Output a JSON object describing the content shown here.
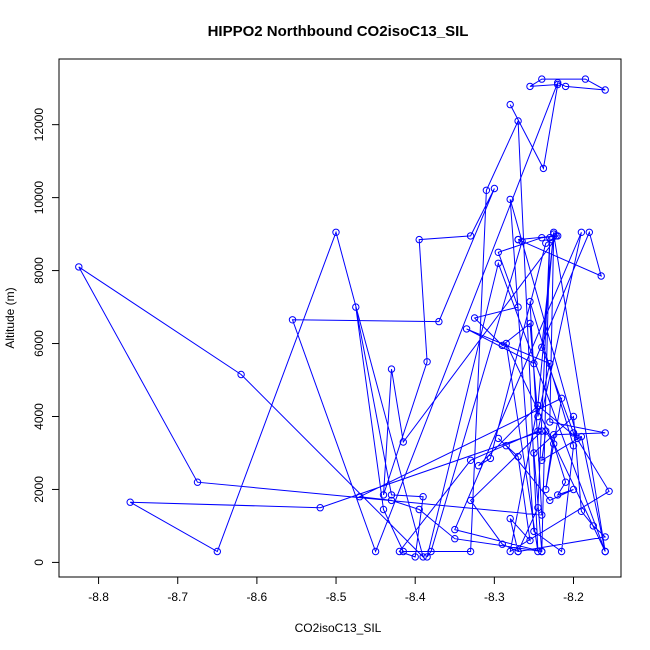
{
  "chart_data": {
    "type": "line",
    "title": "HIPPO2 Northbound CO2isoC13_SIL",
    "xlabel": "CO2isoC13_SIL",
    "ylabel": "Altitude (m)",
    "xlim": [
      -8.85,
      -8.14
    ],
    "ylim": [
      -400,
      13800
    ],
    "xticks": [
      -8.8,
      -8.7,
      -8.6,
      -8.5,
      -8.4,
      -8.3,
      -8.2
    ],
    "xtick_labels": [
      "-8.8",
      "-8.7",
      "-8.6",
      "-8.5",
      "-8.4",
      "-8.3",
      "-8.2"
    ],
    "yticks": [
      0,
      2000,
      4000,
      6000,
      8000,
      10000,
      12000
    ],
    "ytick_labels": [
      "0",
      "2000",
      "4000",
      "6000",
      "8000",
      "10000",
      "12000"
    ],
    "grid": false,
    "legend": "none",
    "colors": {
      "series": "#0000ff",
      "axes": "#000000",
      "background": "#ffffff"
    },
    "series": [
      {
        "style": "line+points",
        "x": [
          -8.28,
          -8.238,
          -8.22,
          -8.255,
          -8.24,
          -8.185,
          -8.16,
          -8.21,
          -8.22,
          -8.45,
          -8.555,
          -8.37,
          -8.3,
          -8.33,
          -8.395,
          -8.385,
          -8.44,
          -8.43,
          -8.415,
          -8.22,
          -8.24,
          -8.295,
          -8.27,
          -8.325,
          -8.29,
          -8.255,
          -8.245,
          -8.23,
          -8.335,
          -8.25,
          -8.18,
          -8.165,
          -8.27,
          -8.265,
          -8.38,
          -8.385,
          -8.295,
          -8.16,
          -8.225,
          -8.23,
          -8.16,
          -8.225,
          -8.235,
          -8.215,
          -8.47,
          -8.43,
          -8.395,
          -8.35,
          -8.24,
          -8.25,
          -8.2,
          -8.19,
          -8.175,
          -8.16,
          -8.27,
          -8.28,
          -8.255,
          -8.27,
          -8.295,
          -8.285,
          -8.23,
          -8.2,
          -8.22,
          -8.21,
          -8.225,
          -8.235,
          -8.24,
          -8.19,
          -8.16,
          -8.285,
          -8.245,
          -8.27,
          -8.31,
          -8.33,
          -8.415,
          -8.44,
          -8.475,
          -8.43,
          -8.39,
          -8.4,
          -8.42,
          -8.33,
          -8.245,
          -8.19,
          -8.35,
          -8.24,
          -8.23,
          -8.245,
          -8.27,
          -8.29,
          -8.33,
          -8.24,
          -8.52,
          -8.76,
          -8.65,
          -8.5,
          -8.39,
          -8.62,
          -8.825,
          -8.675,
          -8.24,
          -8.255,
          -8.2,
          -8.215,
          -8.25,
          -8.28,
          -8.195,
          -8.245,
          -8.225,
          -8.24,
          -8.2,
          -8.155,
          -8.28,
          -8.245,
          -8.32,
          -8.305,
          -8.235,
          -8.228,
          -8.222,
          -8.27
        ],
        "y": [
          12550,
          10800,
          13100,
          13050,
          13250,
          13250,
          12950,
          13050,
          13150,
          300,
          6650,
          6600,
          10250,
          8950,
          8850,
          5500,
          1850,
          5300,
          3300,
          8950,
          8900,
          8500,
          7000,
          6700,
          5950,
          6550,
          4000,
          5450,
          6400,
          5450,
          9050,
          7850,
          8850,
          8800,
          300,
          150,
          8200,
          300,
          9000,
          3850,
          3550,
          3500,
          2000,
          4500,
          1800,
          1700,
          1450,
          650,
          300,
          3000,
          4000,
          1400,
          1000,
          700,
          300,
          1200,
          600,
          2900,
          3400,
          3200,
          1700,
          2000,
          1850,
          2200,
          3250,
          3600,
          2800,
          3450,
          300,
          6000,
          300,
          12100,
          10200,
          300,
          300,
          1450,
          7000,
          1850,
          1800,
          150,
          300,
          2800,
          3600,
          9050,
          900,
          300,
          8900,
          1500,
          300,
          500,
          1700,
          3600,
          1500,
          1650,
          300,
          9050,
          150,
          5150,
          8100,
          2200,
          1300,
          7150,
          3200,
          300,
          850,
          9950,
          3400,
          4300,
          9050,
          5900,
          3550,
          1950,
          300,
          4300,
          2650,
          2850,
          8750,
          8850,
          8950,
          8850
        ]
      }
    ]
  }
}
